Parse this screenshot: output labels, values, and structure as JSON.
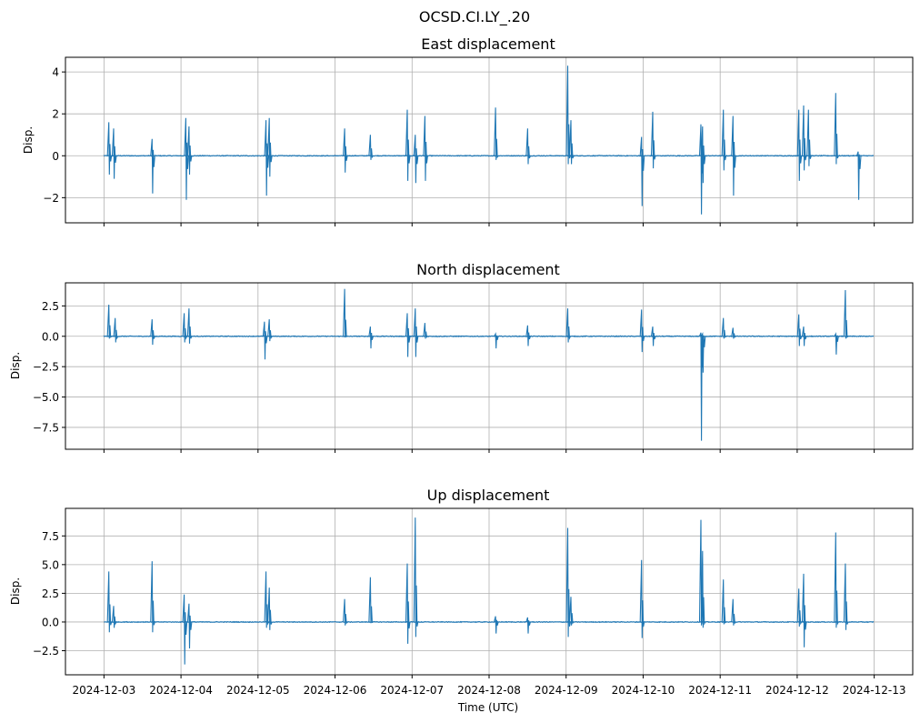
{
  "suptitle": "OCSD.CI.LY_.20",
  "xlabel": "Time (UTC)",
  "x_ticks": [
    "2024-12-03",
    "2024-12-04",
    "2024-12-05",
    "2024-12-06",
    "2024-12-07",
    "2024-12-08",
    "2024-12-09",
    "2024-12-10",
    "2024-12-11",
    "2024-12-12",
    "2024-12-13"
  ],
  "x_range": [
    "2024-12-02T12:00",
    "2024-12-13T12:00"
  ],
  "line_color": "#1f77b4",
  "grid": true,
  "chart_data": [
    {
      "type": "line",
      "title": "East displacement",
      "ylabel": "Disp.",
      "ylim": [
        -3.2,
        4.7
      ],
      "yticks": [
        -2,
        0,
        2,
        4
      ],
      "ytick_labels": [
        "−2",
        "0",
        "2",
        "4"
      ],
      "x_start": "2024-12-03T00:00",
      "x_end": "2024-12-13T00:00",
      "baseline": 0,
      "spikes": [
        {
          "t": "2024-12-03T01:30",
          "max": 1.6,
          "min": -0.9
        },
        {
          "t": "2024-12-03T03:00",
          "max": 1.3,
          "min": -1.1
        },
        {
          "t": "2024-12-03T15:00",
          "max": 0.8,
          "min": -1.8
        },
        {
          "t": "2024-12-04T01:30",
          "max": 1.8,
          "min": -2.1
        },
        {
          "t": "2024-12-04T02:30",
          "max": 1.4,
          "min": -0.9
        },
        {
          "t": "2024-12-05T02:30",
          "max": 1.7,
          "min": -1.9
        },
        {
          "t": "2024-12-05T03:30",
          "max": 1.8,
          "min": -1.0
        },
        {
          "t": "2024-12-06T03:00",
          "max": 1.3,
          "min": -0.8
        },
        {
          "t": "2024-12-06T11:00",
          "max": 1.0,
          "min": -0.2
        },
        {
          "t": "2024-12-06T22:30",
          "max": 2.2,
          "min": -1.2
        },
        {
          "t": "2024-12-07T01:00",
          "max": 1.0,
          "min": -1.3
        },
        {
          "t": "2024-12-07T04:00",
          "max": 1.9,
          "min": -1.2
        },
        {
          "t": "2024-12-08T02:00",
          "max": 2.3,
          "min": -0.2
        },
        {
          "t": "2024-12-08T12:00",
          "max": 1.3,
          "min": -0.4
        },
        {
          "t": "2024-12-09T00:30",
          "max": 4.3,
          "min": -0.4
        },
        {
          "t": "2024-12-09T01:30",
          "max": 1.7,
          "min": -0.4
        },
        {
          "t": "2024-12-09T23:30",
          "max": 0.9,
          "min": -2.4
        },
        {
          "t": "2024-12-10T03:00",
          "max": 2.1,
          "min": -0.6
        },
        {
          "t": "2024-12-10T18:00",
          "max": 1.5,
          "min": -2.8
        },
        {
          "t": "2024-12-10T18:30",
          "max": 1.4,
          "min": -1.3
        },
        {
          "t": "2024-12-11T01:00",
          "max": 2.2,
          "min": -0.7
        },
        {
          "t": "2024-12-11T04:00",
          "max": 1.9,
          "min": -1.9
        },
        {
          "t": "2024-12-12T00:30",
          "max": 2.2,
          "min": -1.2
        },
        {
          "t": "2024-12-12T02:00",
          "max": 2.4,
          "min": -0.7
        },
        {
          "t": "2024-12-12T03:30",
          "max": 2.2,
          "min": -0.5
        },
        {
          "t": "2024-12-12T12:00",
          "max": 3.0,
          "min": -0.4
        },
        {
          "t": "2024-12-12T19:00",
          "max": 0.2,
          "min": -2.1
        }
      ]
    },
    {
      "type": "line",
      "title": "North displacement",
      "ylabel": "Disp.",
      "ylim": [
        -9.3,
        4.4
      ],
      "yticks": [
        -7.5,
        -5.0,
        -2.5,
        0.0,
        2.5
      ],
      "ytick_labels": [
        "−7.5",
        "−5.0",
        "−2.5",
        "0.0",
        "2.5"
      ],
      "x_start": "2024-12-03T00:00",
      "x_end": "2024-12-13T00:00",
      "baseline": 0,
      "spikes": [
        {
          "t": "2024-12-03T01:30",
          "max": 2.6,
          "min": -0.2
        },
        {
          "t": "2024-12-03T03:30",
          "max": 1.5,
          "min": -0.5
        },
        {
          "t": "2024-12-03T15:00",
          "max": 1.4,
          "min": -0.7
        },
        {
          "t": "2024-12-04T01:00",
          "max": 1.9,
          "min": -0.5
        },
        {
          "t": "2024-12-04T02:30",
          "max": 2.3,
          "min": -0.6
        },
        {
          "t": "2024-12-05T02:00",
          "max": 1.2,
          "min": -1.9
        },
        {
          "t": "2024-12-05T03:30",
          "max": 1.4,
          "min": -0.4
        },
        {
          "t": "2024-12-06T03:00",
          "max": 3.9,
          "min": -0.1
        },
        {
          "t": "2024-12-06T11:00",
          "max": 0.8,
          "min": -1.0
        },
        {
          "t": "2024-12-06T22:30",
          "max": 1.9,
          "min": -1.7
        },
        {
          "t": "2024-12-07T01:00",
          "max": 2.3,
          "min": -1.7
        },
        {
          "t": "2024-12-07T04:00",
          "max": 1.1,
          "min": -0.2
        },
        {
          "t": "2024-12-08T02:00",
          "max": 0.2,
          "min": -1.0
        },
        {
          "t": "2024-12-08T12:00",
          "max": 0.9,
          "min": -0.8
        },
        {
          "t": "2024-12-09T00:30",
          "max": 2.3,
          "min": -0.5
        },
        {
          "t": "2024-12-09T23:30",
          "max": 2.2,
          "min": -1.3
        },
        {
          "t": "2024-12-10T03:00",
          "max": 0.8,
          "min": -0.8
        },
        {
          "t": "2024-12-10T18:00",
          "max": 0.3,
          "min": -8.6
        },
        {
          "t": "2024-12-10T18:30",
          "max": 0.2,
          "min": -3.0
        },
        {
          "t": "2024-12-11T01:00",
          "max": 1.5,
          "min": -0.2
        },
        {
          "t": "2024-12-11T04:00",
          "max": 0.7,
          "min": -0.2
        },
        {
          "t": "2024-12-12T00:30",
          "max": 1.8,
          "min": -0.8
        },
        {
          "t": "2024-12-12T02:00",
          "max": 0.8,
          "min": -0.8
        },
        {
          "t": "2024-12-12T12:00",
          "max": 0.2,
          "min": -1.5
        },
        {
          "t": "2024-12-12T15:00",
          "max": 3.8,
          "min": -0.2
        }
      ]
    },
    {
      "type": "line",
      "title": "Up displacement",
      "ylabel": "Disp.",
      "ylim": [
        -4.6,
        9.9
      ],
      "yticks": [
        -2.5,
        0.0,
        2.5,
        5.0,
        7.5
      ],
      "ytick_labels": [
        "−2.5",
        "0.0",
        "2.5",
        "5.0",
        "7.5"
      ],
      "x_start": "2024-12-03T00:00",
      "x_end": "2024-12-13T00:00",
      "baseline": 0,
      "spikes": [
        {
          "t": "2024-12-03T01:30",
          "max": 4.4,
          "min": -0.9
        },
        {
          "t": "2024-12-03T03:00",
          "max": 1.4,
          "min": -0.5
        },
        {
          "t": "2024-12-03T15:00",
          "max": 5.3,
          "min": -0.9
        },
        {
          "t": "2024-12-04T01:00",
          "max": 2.4,
          "min": -3.7
        },
        {
          "t": "2024-12-04T02:30",
          "max": 1.6,
          "min": -2.3
        },
        {
          "t": "2024-12-05T02:30",
          "max": 4.4,
          "min": -0.5
        },
        {
          "t": "2024-12-05T03:30",
          "max": 3.0,
          "min": -0.7
        },
        {
          "t": "2024-12-06T03:00",
          "max": 2.0,
          "min": -0.3
        },
        {
          "t": "2024-12-06T11:00",
          "max": 3.9,
          "min": -0.1
        },
        {
          "t": "2024-12-06T22:30",
          "max": 5.1,
          "min": -1.9
        },
        {
          "t": "2024-12-07T01:00",
          "max": 9.1,
          "min": -1.3
        },
        {
          "t": "2024-12-08T02:00",
          "max": 0.5,
          "min": -1.0
        },
        {
          "t": "2024-12-08T12:00",
          "max": 0.4,
          "min": -1.0
        },
        {
          "t": "2024-12-09T00:30",
          "max": 8.2,
          "min": -1.3
        },
        {
          "t": "2024-12-09T01:30",
          "max": 2.2,
          "min": -0.3
        },
        {
          "t": "2024-12-09T23:30",
          "max": 5.4,
          "min": -1.4
        },
        {
          "t": "2024-12-10T18:00",
          "max": 8.9,
          "min": -0.3
        },
        {
          "t": "2024-12-10T18:30",
          "max": 6.2,
          "min": -0.5
        },
        {
          "t": "2024-12-11T01:00",
          "max": 3.7,
          "min": -0.2
        },
        {
          "t": "2024-12-11T04:00",
          "max": 2.0,
          "min": -0.3
        },
        {
          "t": "2024-12-12T00:30",
          "max": 2.9,
          "min": -0.4
        },
        {
          "t": "2024-12-12T02:00",
          "max": 4.2,
          "min": -2.2
        },
        {
          "t": "2024-12-12T12:00",
          "max": 7.8,
          "min": -0.5
        },
        {
          "t": "2024-12-12T15:00",
          "max": 5.1,
          "min": -0.7
        }
      ]
    }
  ]
}
